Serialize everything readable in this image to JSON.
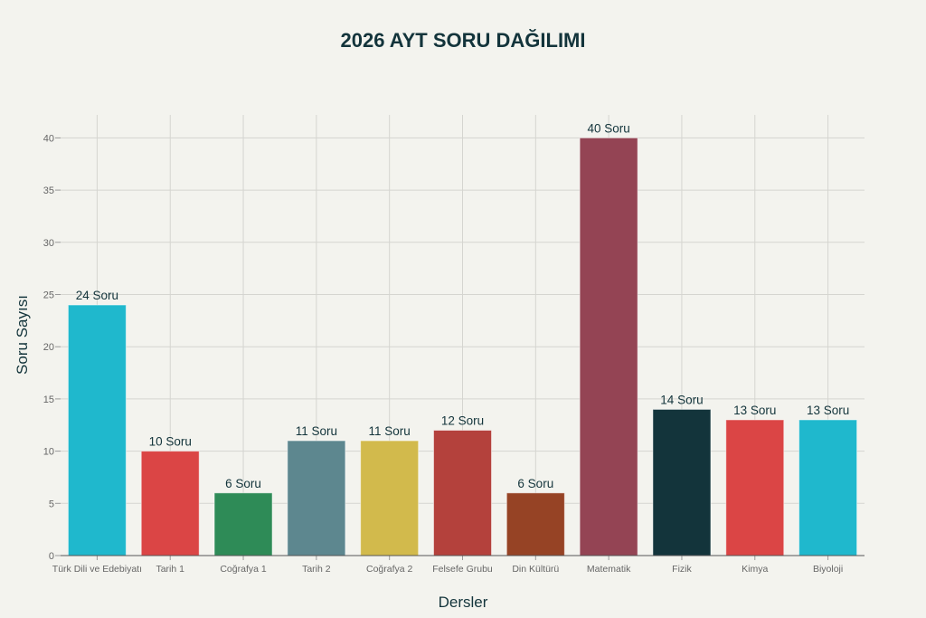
{
  "chart_data": {
    "type": "bar",
    "title": "2026 AYT SORU DAĞILIMI",
    "xlabel": "Dersler",
    "ylabel": "Soru Sayısı",
    "ylim": [
      0,
      42.2
    ],
    "yticks": [
      0,
      5,
      10,
      15,
      20,
      25,
      30,
      35,
      40
    ],
    "grid": true,
    "categories": [
      "Türk Dili ve Edebiyatı",
      "Tarih 1",
      "Coğrafya 1",
      "Tarih 2",
      "Coğrafya 2",
      "Felsefe Grubu",
      "Din Kültürü",
      "Matematik",
      "Fizik",
      "Kimya",
      "Biyoloji"
    ],
    "values": [
      24,
      10,
      6,
      11,
      11,
      12,
      6,
      40,
      14,
      13,
      13
    ],
    "labels": [
      "24 Soru",
      "10 Soru",
      "6 Soru",
      "11 Soru",
      "11 Soru",
      "12 Soru",
      "6 Soru",
      "40 Soru",
      "14 Soru",
      "13 Soru",
      "13 Soru"
    ],
    "colors": [
      "#1fb8cd",
      "#db4545",
      "#2e8b57",
      "#5d878f",
      "#d2ba4c",
      "#b4413c",
      "#964325",
      "#944454",
      "#13343b",
      "#db4545",
      "#1fb8cd"
    ]
  }
}
